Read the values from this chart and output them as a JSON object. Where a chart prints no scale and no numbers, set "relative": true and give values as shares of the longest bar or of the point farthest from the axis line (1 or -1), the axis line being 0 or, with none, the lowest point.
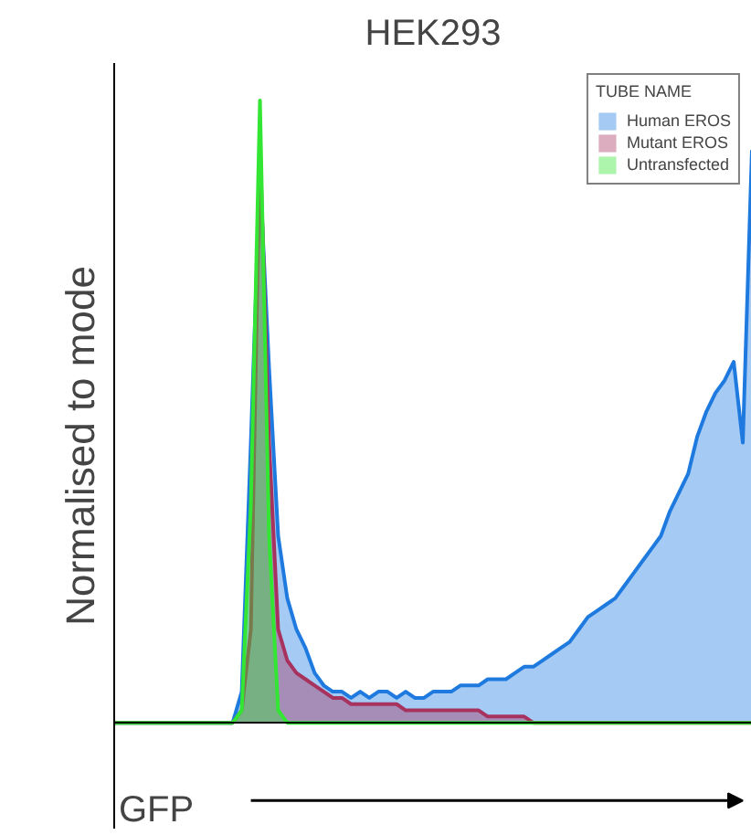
{
  "chart_data": {
    "type": "area",
    "title": "HEK293",
    "xlabel": "GFP",
    "ylabel": "Normalised to mode",
    "legend_title": "TUBE NAME",
    "relative": true,
    "legend": "top right",
    "categories": [
      null,
      null,
      null,
      null,
      null,
      null,
      null,
      null,
      null,
      null,
      null,
      null,
      null,
      null,
      null,
      null,
      null,
      null,
      null,
      null,
      null,
      null,
      null,
      null,
      null,
      null,
      null,
      null,
      null,
      null,
      null,
      null,
      null,
      null,
      null,
      null,
      null,
      null,
      null,
      null,
      null,
      null,
      null,
      null,
      null,
      null,
      null,
      null,
      null,
      null,
      null,
      null,
      null,
      null,
      null,
      null,
      null,
      null,
      null,
      null,
      null,
      null,
      null,
      null,
      null,
      null,
      null,
      null,
      null,
      null,
      null
    ],
    "series": [
      {
        "name": "Human EROS",
        "color": "#1f7ae0",
        "values": [
          0,
          0,
          0,
          0,
          0,
          0,
          0,
          0,
          0,
          0,
          0,
          0,
          0,
          0,
          0.05,
          0.45,
          0.88,
          0.57,
          0.3,
          0.2,
          0.15,
          0.12,
          0.08,
          0.06,
          0.05,
          0.05,
          0.04,
          0.05,
          0.04,
          0.05,
          0.05,
          0.04,
          0.05,
          0.04,
          0.04,
          0.05,
          0.05,
          0.05,
          0.06,
          0.06,
          0.06,
          0.07,
          0.07,
          0.07,
          0.08,
          0.09,
          0.09,
          0.1,
          0.11,
          0.12,
          0.13,
          0.15,
          0.17,
          0.18,
          0.19,
          0.2,
          0.22,
          0.24,
          0.26,
          0.28,
          0.3,
          0.34,
          0.37,
          0.4,
          0.46,
          0.5,
          0.53,
          0.55,
          0.58,
          0.45,
          0.92
        ]
      },
      {
        "name": "Mutant EROS",
        "color": "#a8325e",
        "values": [
          0,
          0,
          0,
          0,
          0,
          0,
          0,
          0,
          0,
          0,
          0,
          0,
          0,
          0,
          0.02,
          0.15,
          0.93,
          0.45,
          0.15,
          0.1,
          0.08,
          0.07,
          0.06,
          0.05,
          0.04,
          0.04,
          0.03,
          0.03,
          0.03,
          0.03,
          0.03,
          0.03,
          0.02,
          0.02,
          0.02,
          0.02,
          0.02,
          0.02,
          0.02,
          0.02,
          0.02,
          0.01,
          0.01,
          0.01,
          0.01,
          0.01,
          0,
          0,
          0,
          0,
          0,
          0,
          0,
          0,
          0,
          0,
          0,
          0,
          0,
          0,
          0,
          0,
          0,
          0,
          0,
          0,
          0,
          0,
          0,
          0,
          0
        ]
      },
      {
        "name": "Untransfected",
        "color": "#33e633",
        "values": [
          0,
          0,
          0,
          0,
          0,
          0,
          0,
          0,
          0,
          0,
          0,
          0,
          0,
          0,
          0.02,
          0.35,
          1.0,
          0.3,
          0.02,
          0,
          0,
          0,
          0,
          0,
          0,
          0,
          0,
          0,
          0,
          0,
          0,
          0,
          0,
          0,
          0,
          0,
          0,
          0,
          0,
          0,
          0,
          0,
          0,
          0,
          0,
          0,
          0,
          0,
          0,
          0,
          0,
          0,
          0,
          0,
          0,
          0,
          0,
          0,
          0,
          0,
          0,
          0,
          0,
          0,
          0,
          0,
          0,
          0,
          0,
          0,
          0
        ]
      }
    ]
  }
}
